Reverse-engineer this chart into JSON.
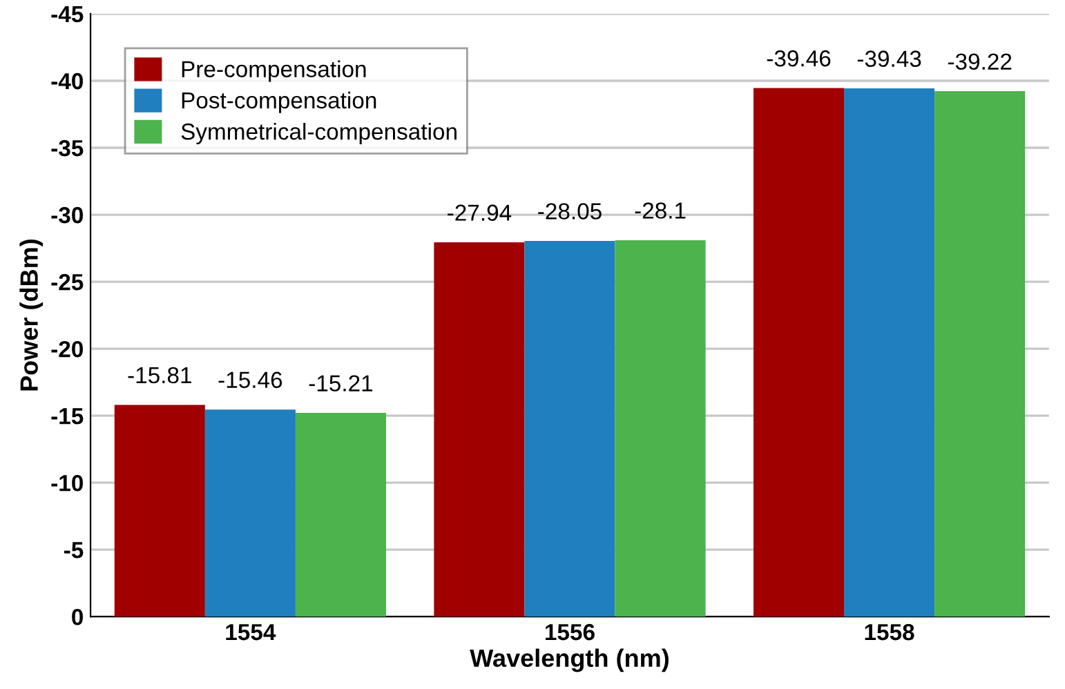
{
  "chart_data": {
    "type": "bar",
    "xlabel": "Wavelength (nm)",
    "ylabel": "Power (dBm)",
    "categories": [
      "1554",
      "1556",
      "1558"
    ],
    "series": [
      {
        "name": "Pre-compensation",
        "color": "#a00000",
        "values": [
          -15.81,
          -27.94,
          -39.46
        ]
      },
      {
        "name": "Post-compensation",
        "color": "#1f7fbf",
        "values": [
          -15.46,
          -28.05,
          -39.43
        ]
      },
      {
        "name": "Symmetrical-compensation",
        "color": "#4db34d",
        "values": [
          -15.21,
          -28.1,
          -39.22
        ]
      }
    ],
    "ylim": [
      0,
      -45
    ],
    "yticks": [
      0,
      -5,
      -10,
      -15,
      -20,
      -25,
      -30,
      -35,
      -40,
      -45
    ],
    "grid": "y",
    "legend": "top left",
    "data_labels": true
  }
}
